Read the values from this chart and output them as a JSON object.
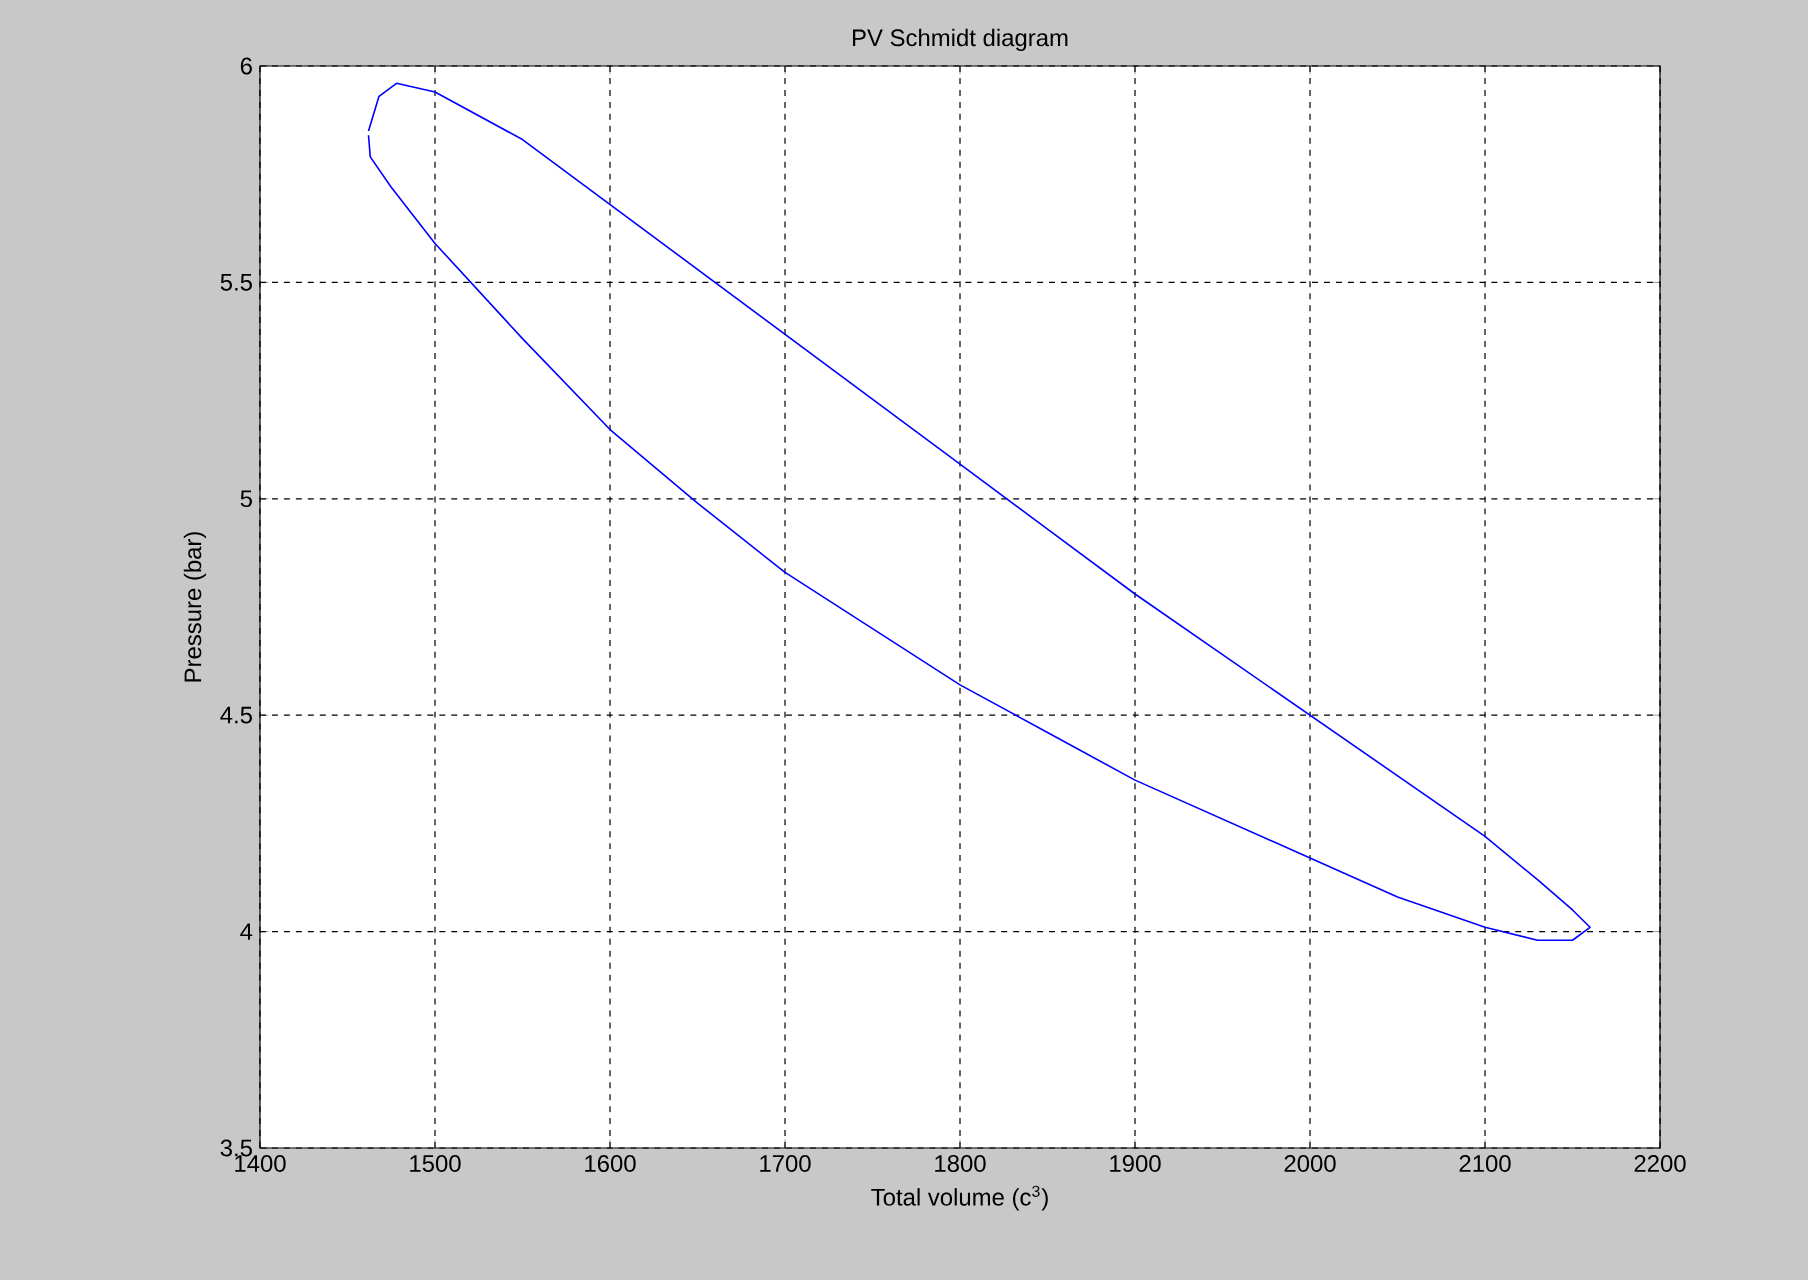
{
  "chart_data": {
    "type": "line",
    "title": "PV Schmidt diagram",
    "xlabel": "Total volume (c$^{3}$)",
    "ylabel": "Pressure (bar)",
    "series": [
      {
        "color": "#0000ff",
        "x": [
          1462,
          1468,
          1478,
          1500,
          1550,
          1600,
          1650,
          1700,
          1750,
          1800,
          1850,
          1900,
          1950,
          2000,
          2050,
          2100,
          2130,
          2150,
          2160,
          2150,
          2130,
          2100,
          2050,
          2000,
          1950,
          1900,
          1850,
          1800,
          1750,
          1700,
          1650,
          1600,
          1550,
          1500,
          1475,
          1463,
          1462
        ],
        "values": [
          5.85,
          5.93,
          5.96,
          5.94,
          5.83,
          5.68,
          5.53,
          5.38,
          5.23,
          5.08,
          4.93,
          4.78,
          4.64,
          4.5,
          4.36,
          4.22,
          4.12,
          4.05,
          4.01,
          3.98,
          3.98,
          4.01,
          4.08,
          4.17,
          4.26,
          4.35,
          4.46,
          4.57,
          4.7,
          4.83,
          4.99,
          5.16,
          5.37,
          5.59,
          5.72,
          5.79,
          5.84
        ]
      }
    ],
    "xlim": [
      1400,
      2200
    ],
    "ylim": [
      3.5,
      6
    ],
    "xticks": [
      1400,
      1500,
      1600,
      1700,
      1800,
      1900,
      2000,
      2100,
      2200
    ],
    "yticks": [
      3.5,
      4,
      4.5,
      5,
      5.5,
      6
    ],
    "grid": true
  }
}
